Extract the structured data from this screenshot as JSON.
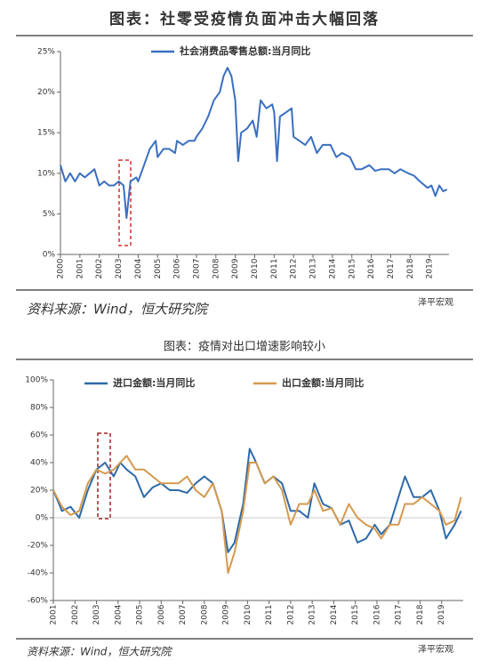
{
  "chart_data": [
    {
      "type": "line",
      "title": "图表：社零受疫情负面冲击大幅回落",
      "x": [
        2000.0,
        2000.25,
        2000.5,
        2000.75,
        2001.0,
        2001.25,
        2001.5,
        2001.75,
        2002.0,
        2002.25,
        2002.5,
        2002.75,
        2003.0,
        2003.25,
        2003.4,
        2003.6,
        2003.9,
        2004.0,
        2004.3,
        2004.6,
        2004.9,
        2005.0,
        2005.3,
        2005.6,
        2005.9,
        2006.0,
        2006.3,
        2006.6,
        2006.9,
        2007.0,
        2007.3,
        2007.6,
        2007.9,
        2008.2,
        2008.4,
        2008.6,
        2008.8,
        2009.0,
        2009.15,
        2009.3,
        2009.6,
        2009.9,
        2010.1,
        2010.3,
        2010.6,
        2010.9,
        2011.0,
        2011.15,
        2011.3,
        2011.6,
        2011.9,
        2012.0,
        2012.3,
        2012.6,
        2012.9,
        2013.2,
        2013.5,
        2013.9,
        2014.2,
        2014.5,
        2014.9,
        2015.2,
        2015.5,
        2015.9,
        2016.2,
        2016.5,
        2016.9,
        2017.2,
        2017.5,
        2017.9,
        2018.2,
        2018.5,
        2018.9,
        2019.1,
        2019.3,
        2019.5,
        2019.7,
        2019.9
      ],
      "series": [
        {
          "name": "社会消费品零售总额:当月同比",
          "color": "#3a6fc0",
          "values": [
            11,
            9,
            10,
            9,
            10,
            9.5,
            10,
            10.5,
            8.5,
            9,
            8.5,
            8.5,
            9,
            8.5,
            4.5,
            9,
            9.5,
            9,
            11,
            13,
            14,
            12,
            13,
            13,
            12.5,
            14,
            13.5,
            14,
            14,
            14.5,
            15.5,
            17,
            19,
            20,
            22,
            23,
            22,
            19,
            11.5,
            15,
            15.5,
            16.5,
            14.5,
            19,
            18,
            18.5,
            17.5,
            11.5,
            17,
            17.5,
            18,
            14.5,
            14,
            13.5,
            14.5,
            12.5,
            13.5,
            13.5,
            12,
            12.5,
            12,
            10.5,
            10.5,
            11,
            10.3,
            10.5,
            10.5,
            10,
            10.5,
            10,
            9.7,
            9,
            8.2,
            8.5,
            7.2,
            8.5,
            7.8,
            8
          ]
        }
      ],
      "xlim": [
        2000,
        2020
      ],
      "xticks": [
        2000,
        2001,
        2002,
        2003,
        2004,
        2005,
        2006,
        2007,
        2008,
        2009,
        2010,
        2011,
        2012,
        2013,
        2014,
        2015,
        2016,
        2017,
        2018,
        2019
      ],
      "ylim": [
        0,
        25
      ],
      "yticks": [
        {
          "value": 0,
          "label": "0%"
        },
        {
          "value": 5,
          "label": "5%"
        },
        {
          "value": 10,
          "label": "10%"
        },
        {
          "value": 15,
          "label": "15%"
        },
        {
          "value": 20,
          "label": "20%"
        },
        {
          "value": 25,
          "label": "25%"
        }
      ],
      "grid": false,
      "source": "资料来源：Wind，恒大研究院",
      "watermark": "泽平宏观"
    },
    {
      "type": "line",
      "title": "图表：疫情对出口增速影响较小",
      "x": [
        2001,
        2001.4,
        2001.8,
        2002.2,
        2002.6,
        2003,
        2003.4,
        2003.8,
        2004.1,
        2004.4,
        2004.8,
        2005.2,
        2005.6,
        2006,
        2006.4,
        2006.8,
        2007.2,
        2007.6,
        2008,
        2008.4,
        2008.8,
        2009.1,
        2009.4,
        2009.8,
        2010.1,
        2010.4,
        2010.8,
        2011.2,
        2011.6,
        2012,
        2012.4,
        2012.8,
        2013.1,
        2013.5,
        2013.9,
        2014.3,
        2014.7,
        2015.1,
        2015.5,
        2015.9,
        2016.2,
        2016.6,
        2017,
        2017.3,
        2017.7,
        2018.1,
        2018.5,
        2018.9,
        2019.2,
        2019.6,
        2019.9
      ],
      "series": [
        {
          "name": "进口金额:当月同比",
          "color": "#2e6aa8",
          "values": [
            20,
            5,
            8,
            0,
            20,
            35,
            40,
            30,
            40,
            35,
            30,
            15,
            22,
            25,
            20,
            20,
            18,
            25,
            30,
            25,
            5,
            -25,
            -18,
            10,
            50,
            40,
            25,
            30,
            25,
            5,
            5,
            0,
            25,
            10,
            7,
            -5,
            -2,
            -18,
            -15,
            -5,
            -12,
            -5,
            15,
            30,
            15,
            15,
            20,
            5,
            -15,
            -5,
            5
          ]
        },
        {
          "name": "出口金额:当月同比",
          "color": "#d49a4e",
          "values": [
            20,
            8,
            2,
            5,
            25,
            35,
            32,
            35,
            40,
            45,
            35,
            35,
            30,
            25,
            25,
            25,
            30,
            20,
            15,
            25,
            5,
            -40,
            -25,
            5,
            40,
            40,
            25,
            30,
            20,
            -5,
            10,
            10,
            20,
            5,
            7,
            -5,
            10,
            0,
            -5,
            -8,
            -15,
            -5,
            -5,
            10,
            10,
            15,
            10,
            5,
            -5,
            -2,
            15
          ]
        }
      ],
      "xlim": [
        2001,
        2020
      ],
      "xticks": [
        2001,
        2002,
        2003,
        2004,
        2005,
        2006,
        2007,
        2008,
        2009,
        2010,
        2011,
        2012,
        2013,
        2014,
        2015,
        2016,
        2017,
        2018,
        2019
      ],
      "ylim": [
        -60,
        100
      ],
      "yticks": [
        {
          "value": -60,
          "label": "-60%"
        },
        {
          "value": -40,
          "label": "-40%"
        },
        {
          "value": -20,
          "label": "-20%"
        },
        {
          "value": 0,
          "label": "0%"
        },
        {
          "value": 20,
          "label": "20%"
        },
        {
          "value": 40,
          "label": "40%"
        },
        {
          "value": 60,
          "label": "60%"
        },
        {
          "value": 80,
          "label": "80%"
        },
        {
          "value": 100,
          "label": "100%"
        }
      ],
      "grid": false,
      "source": "资料来源：Wind，恒大研究院",
      "watermark": "泽平宏观"
    }
  ]
}
